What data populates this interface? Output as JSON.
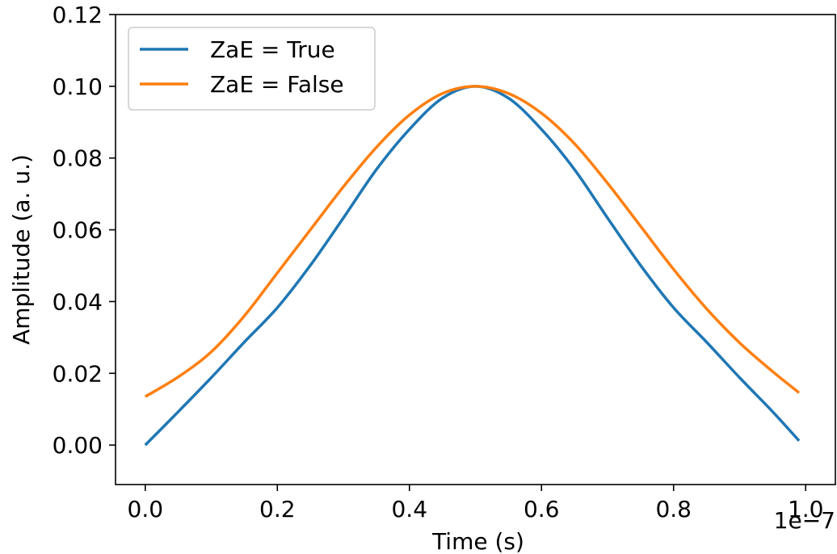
{
  "chart_data": {
    "type": "line",
    "title": "",
    "xlabel": "Time (s)",
    "ylabel": "Amplitude (a. u.)",
    "x_offset_label": "1e−7",
    "xlim": [
      -0.045,
      1.045
    ],
    "ylim": [
      -0.011,
      0.12
    ],
    "x_ticks": [
      0.0,
      0.2,
      0.4,
      0.6,
      0.8,
      1.0
    ],
    "x_tick_labels": [
      "0.0",
      "0.2",
      "0.4",
      "0.6",
      "0.8",
      "1.0"
    ],
    "y_ticks": [
      0.0,
      0.02,
      0.04,
      0.06,
      0.08,
      0.1,
      0.12
    ],
    "y_tick_labels": [
      "0.00",
      "0.02",
      "0.04",
      "0.06",
      "0.08",
      "0.10",
      "0.12"
    ],
    "grid": false,
    "legend_position": "upper-left",
    "x": [
      0.0,
      0.05,
      0.1,
      0.15,
      0.2,
      0.25,
      0.3,
      0.35,
      0.4,
      0.45,
      0.5,
      0.55,
      0.6,
      0.65,
      0.7,
      0.75,
      0.8,
      0.85,
      0.9,
      0.95,
      0.99
    ],
    "series": [
      {
        "name": "ZaE = True",
        "color": "#1f77b4",
        "values": [
          0.0,
          0.0093,
          0.0188,
          0.0287,
          0.0383,
          0.0501,
          0.0633,
          0.0768,
          0.088,
          0.0967,
          0.1,
          0.0967,
          0.088,
          0.0768,
          0.0633,
          0.0501,
          0.0383,
          0.0287,
          0.0188,
          0.0093,
          0.0012
        ]
      },
      {
        "name": "ZaE = False",
        "color": "#ff7f0e",
        "values": [
          0.0135,
          0.019,
          0.026,
          0.036,
          0.048,
          0.06,
          0.072,
          0.083,
          0.092,
          0.098,
          0.1,
          0.098,
          0.0925,
          0.084,
          0.073,
          0.061,
          0.049,
          0.038,
          0.0285,
          0.0205,
          0.0146
        ]
      }
    ]
  }
}
